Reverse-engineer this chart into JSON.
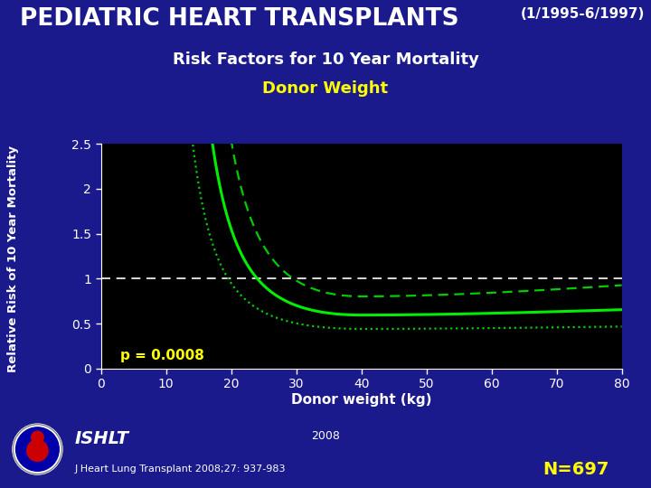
{
  "title_main": "PEDIATRIC HEART TRANSPLANTS",
  "title_date": "(1/1995-6/1997)",
  "title_sub1": "Risk Factors for 10 Year Mortality",
  "title_sub2": "Donor Weight",
  "xlabel": "Donor weight (kg)",
  "ylabel": "Relative Risk of 10 Year Mortality",
  "pvalue": "p = 0.0008",
  "n_label": "N=697",
  "citation": "J Heart Lung Transplant 2008;27: 937-983",
  "year": "2008",
  "bg_color": "#1a1a8c",
  "plot_bg": "#000000",
  "main_color": "#00EE00",
  "ci_upper_color": "#00CC00",
  "ci_lower_color": "#00CC00",
  "hline_color": "#FFFFFF",
  "title_color": "#FFFFFF",
  "subtitle_color": "#FFFFFF",
  "donor_weight_color": "#FFFF00",
  "pvalue_color": "#FFFF00",
  "n_color": "#FFFF00",
  "xlim": [
    0,
    80
  ],
  "ylim": [
    0,
    2.5
  ],
  "xticks": [
    0,
    10,
    20,
    30,
    40,
    50,
    60,
    70,
    80
  ],
  "ytick_vals": [
    0,
    0.5,
    1.0,
    1.5,
    2.0,
    2.5
  ],
  "ytick_labels": [
    "0",
    "0.5",
    "1",
    "1.5",
    "2",
    "2.5"
  ]
}
